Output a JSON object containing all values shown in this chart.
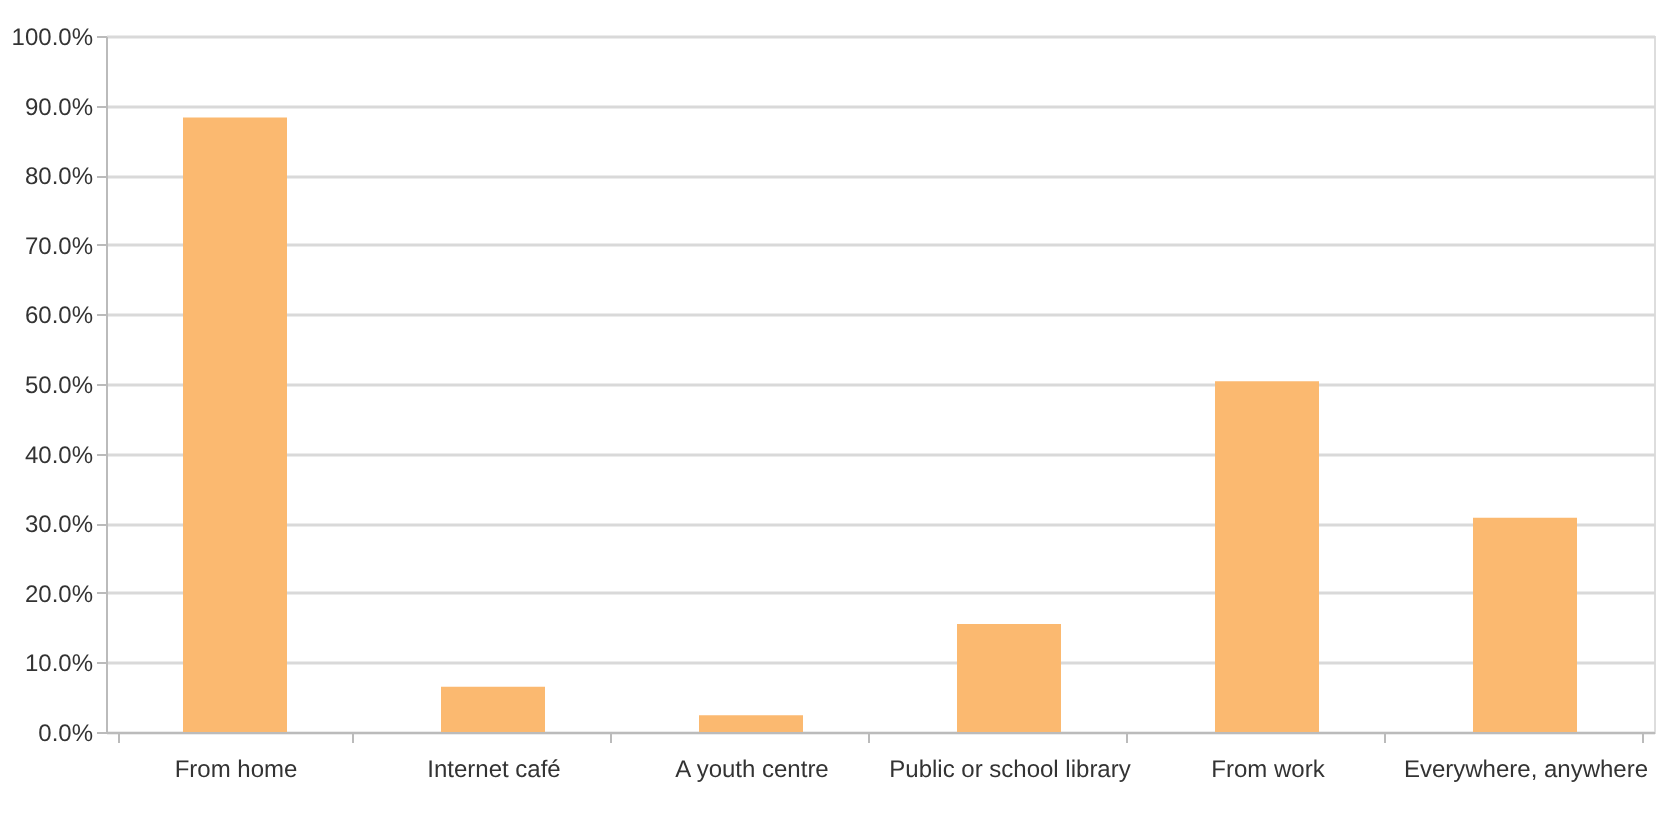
{
  "chart_data": {
    "type": "bar",
    "categories": [
      "From home",
      "Internet café",
      "A youth centre",
      "Public or school library",
      "From work",
      "Everywhere, anywhere"
    ],
    "values": [
      88.3,
      6.5,
      2.4,
      15.5,
      50.4,
      30.8
    ],
    "color": "#fbb970",
    "ylim": [
      0,
      100
    ],
    "yticks": [
      {
        "value": 0,
        "label": "0.0%"
      },
      {
        "value": 10,
        "label": "10.0%"
      },
      {
        "value": 20,
        "label": "20.0%"
      },
      {
        "value": 30,
        "label": "30.0%"
      },
      {
        "value": 40,
        "label": "40.0%"
      },
      {
        "value": 50,
        "label": "50.0%"
      },
      {
        "value": 60,
        "label": "60.0%"
      },
      {
        "value": 70,
        "label": "70.0%"
      },
      {
        "value": 80,
        "label": "80.0%"
      },
      {
        "value": 90,
        "label": "90.0%"
      },
      {
        "value": 100,
        "label": "100.0%"
      }
    ],
    "grid": "y"
  }
}
